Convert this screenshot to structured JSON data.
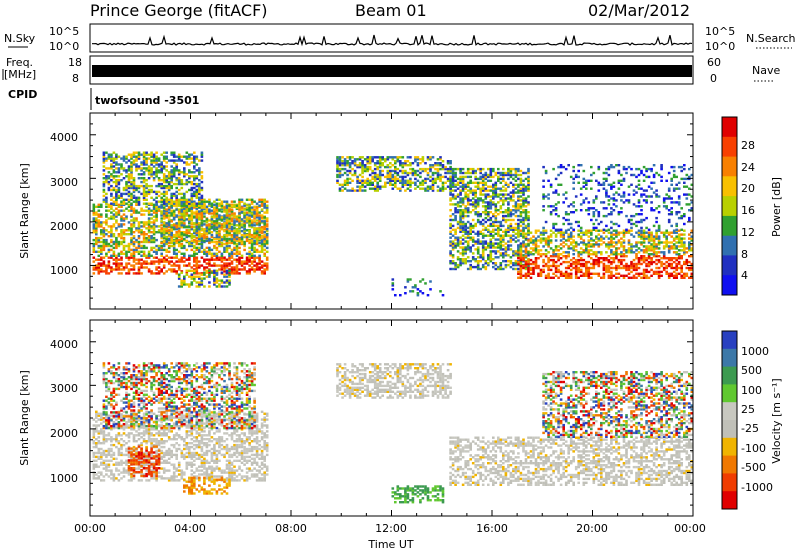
{
  "header": {
    "title": "Prince George (fitACF)",
    "beam": "Beam 01",
    "date": "02/Mar/2012"
  },
  "summary": {
    "nsky_label": "N.Sky",
    "nsky_ticks": [
      "10^5",
      "10^0"
    ],
    "nsearch_label": "N.Search",
    "nsearch_ticks": [
      "10^5",
      "10^0"
    ],
    "freq_label_line1": "Freq.",
    "freq_label_line2": "[MHz]",
    "freq_ticks": [
      "18",
      "8"
    ],
    "nave_label": "Nave",
    "nave_ticks": [
      "60",
      "0"
    ],
    "cpid_label": "CPID",
    "cpid_value": "twofsound -3501"
  },
  "axes": {
    "y_label": "Slant Range [km]",
    "x_label": "Time UT",
    "y_ticks": [
      "1000",
      "2000",
      "3000",
      "4000"
    ],
    "x_ticks": [
      "00:00",
      "04:00",
      "08:00",
      "12:00",
      "16:00",
      "20:00",
      "00:00"
    ]
  },
  "colorbars": {
    "power": {
      "label": "Power [dB]",
      "ticks": [
        "28",
        "24",
        "20",
        "16",
        "12",
        "8",
        "4"
      ],
      "colors": [
        "#e00000",
        "#f84000",
        "#f88000",
        "#f8c000",
        "#b8d000",
        "#30a030",
        "#3070b0",
        "#2030c0",
        "#1010f0"
      ]
    },
    "velocity": {
      "label": "Velocity [m s⁻¹]",
      "ticks": [
        "1000",
        "500",
        "100",
        "25",
        "-25",
        "-100",
        "-500",
        "-1000"
      ],
      "colors": [
        "#2840c0",
        "#3c78a8",
        "#3c9a50",
        "#60c830",
        "#c8c8c0",
        "#c0c0b8",
        "#f0b400",
        "#f07800",
        "#f03c00",
        "#e00000"
      ]
    }
  },
  "chart_data": [
    {
      "type": "heatmap",
      "title": "Power",
      "xlabel": "Time UT",
      "ylabel": "Slant Range [km]",
      "xlim": [
        0,
        24
      ],
      "ylim": [
        0,
        4500
      ],
      "x_unit": "hours UT",
      "colorbar_label": "Power [dB]",
      "regions": [
        {
          "t0": 0.1,
          "t1": 7.0,
          "r0": 800,
          "r1": 2400,
          "level": "high",
          "note": "strong near-range band 900-1400 km, red core ~1000 km"
        },
        {
          "t0": 2.8,
          "t1": 7.0,
          "r0": 1500,
          "r1": 2500,
          "level": "high",
          "note": "rising arc toward 2000 km by 06:00"
        },
        {
          "t0": 0.5,
          "t1": 4.5,
          "r0": 2400,
          "r1": 3600,
          "level": "medium"
        },
        {
          "t0": 3.5,
          "t1": 5.5,
          "r0": 500,
          "r1": 900,
          "level": "medium"
        },
        {
          "t0": 9.8,
          "t1": 14.3,
          "r0": 2700,
          "r1": 3500,
          "level": "medium"
        },
        {
          "t0": 12.0,
          "t1": 14.0,
          "r0": 300,
          "r1": 700,
          "level": "low"
        },
        {
          "t0": 14.3,
          "t1": 17.5,
          "r0": 900,
          "r1": 3200,
          "level": "medium",
          "note": "descending arc"
        },
        {
          "t0": 17.0,
          "t1": 24.0,
          "r0": 700,
          "r1": 1800,
          "level": "high",
          "note": "red core ~800-1100 km"
        },
        {
          "t0": 18.0,
          "t1": 24.0,
          "r0": 1800,
          "r1": 3300,
          "level": "low",
          "note": "sparse scatter"
        }
      ]
    },
    {
      "type": "heatmap",
      "title": "Velocity",
      "xlabel": "Time UT",
      "ylabel": "Slant Range [km]",
      "xlim": [
        0,
        24
      ],
      "ylim": [
        0,
        4500
      ],
      "x_unit": "hours UT",
      "colorbar_label": "Velocity [m s⁻¹]",
      "regions": [
        {
          "t0": 0.1,
          "t1": 7.0,
          "r0": 800,
          "r1": 2400,
          "level": "near-zero (ground scatter)"
        },
        {
          "t0": 1.5,
          "t1": 2.8,
          "r0": 900,
          "r1": 1600,
          "level": "-500 to -1000"
        },
        {
          "t0": 3.7,
          "t1": 5.5,
          "r0": 500,
          "r1": 900,
          "level": "-100 to -500"
        },
        {
          "t0": 0.5,
          "t1": 6.5,
          "r0": 2000,
          "r1": 3500,
          "level": "mixed near-zero and negative"
        },
        {
          "t0": 9.8,
          "t1": 14.3,
          "r0": 2700,
          "r1": 3500,
          "level": "near-zero"
        },
        {
          "t0": 12.0,
          "t1": 14.0,
          "r0": 300,
          "r1": 700,
          "level": "100"
        },
        {
          "t0": 14.3,
          "t1": 24.0,
          "r0": 700,
          "r1": 1800,
          "level": "near-zero (ground scatter)"
        },
        {
          "t0": 18.0,
          "t1": 24.0,
          "r0": 1800,
          "r1": 3300,
          "level": "mixed"
        }
      ]
    }
  ]
}
